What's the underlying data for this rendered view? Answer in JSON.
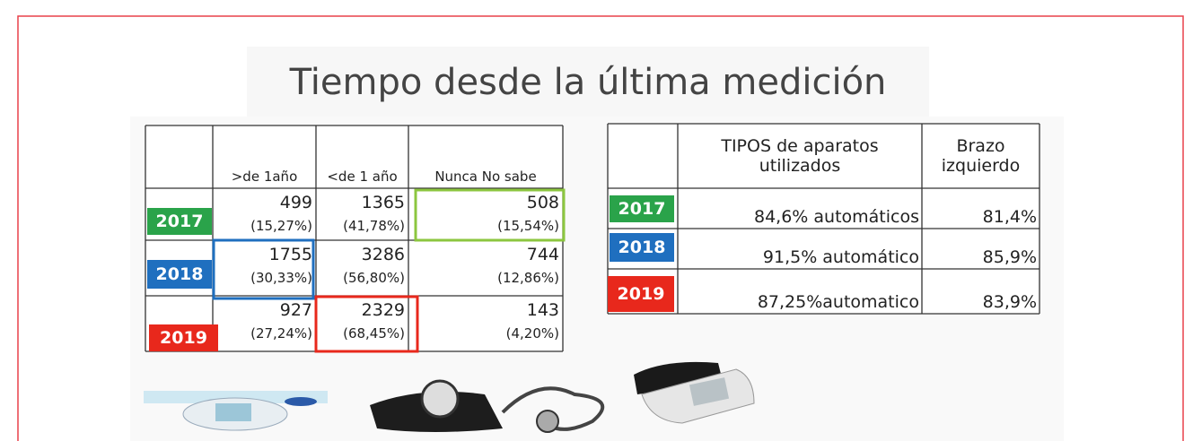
{
  "title": "Tiempo desde la última medición",
  "left_table": {
    "header": [
      ">de 1año",
      "<de 1 año",
      "Nunca No sabe"
    ],
    "rows": [
      {
        "year": "2017",
        "cells": [
          [
            "499",
            "(15,27%)"
          ],
          [
            "1365",
            "(41,78%)"
          ],
          [
            "508",
            "(15,54%)"
          ]
        ]
      },
      {
        "year": "2018",
        "cells": [
          [
            "1755",
            "(30,33%)"
          ],
          [
            "3286",
            "(56,80%)"
          ],
          [
            "744",
            "(12,86%)"
          ]
        ]
      },
      {
        "year": "2019",
        "cells": [
          [
            "927",
            "(27,24%)"
          ],
          [
            "2329",
            "(68,45%)"
          ],
          [
            "143",
            "(4,20%)"
          ]
        ]
      }
    ]
  },
  "right_table": {
    "header": [
      "TIPOS de aparatos utilizados",
      "Brazo izquierdo"
    ],
    "rows": [
      {
        "year": "2017",
        "cells": [
          "84,6% automáticos",
          "81,4%"
        ]
      },
      {
        "year": "2018",
        "cells": [
          "91,5% automático",
          "85,9%"
        ]
      },
      {
        "year": "2019",
        "cells": [
          "87,25%automatico",
          "83,9%"
        ]
      }
    ]
  }
}
